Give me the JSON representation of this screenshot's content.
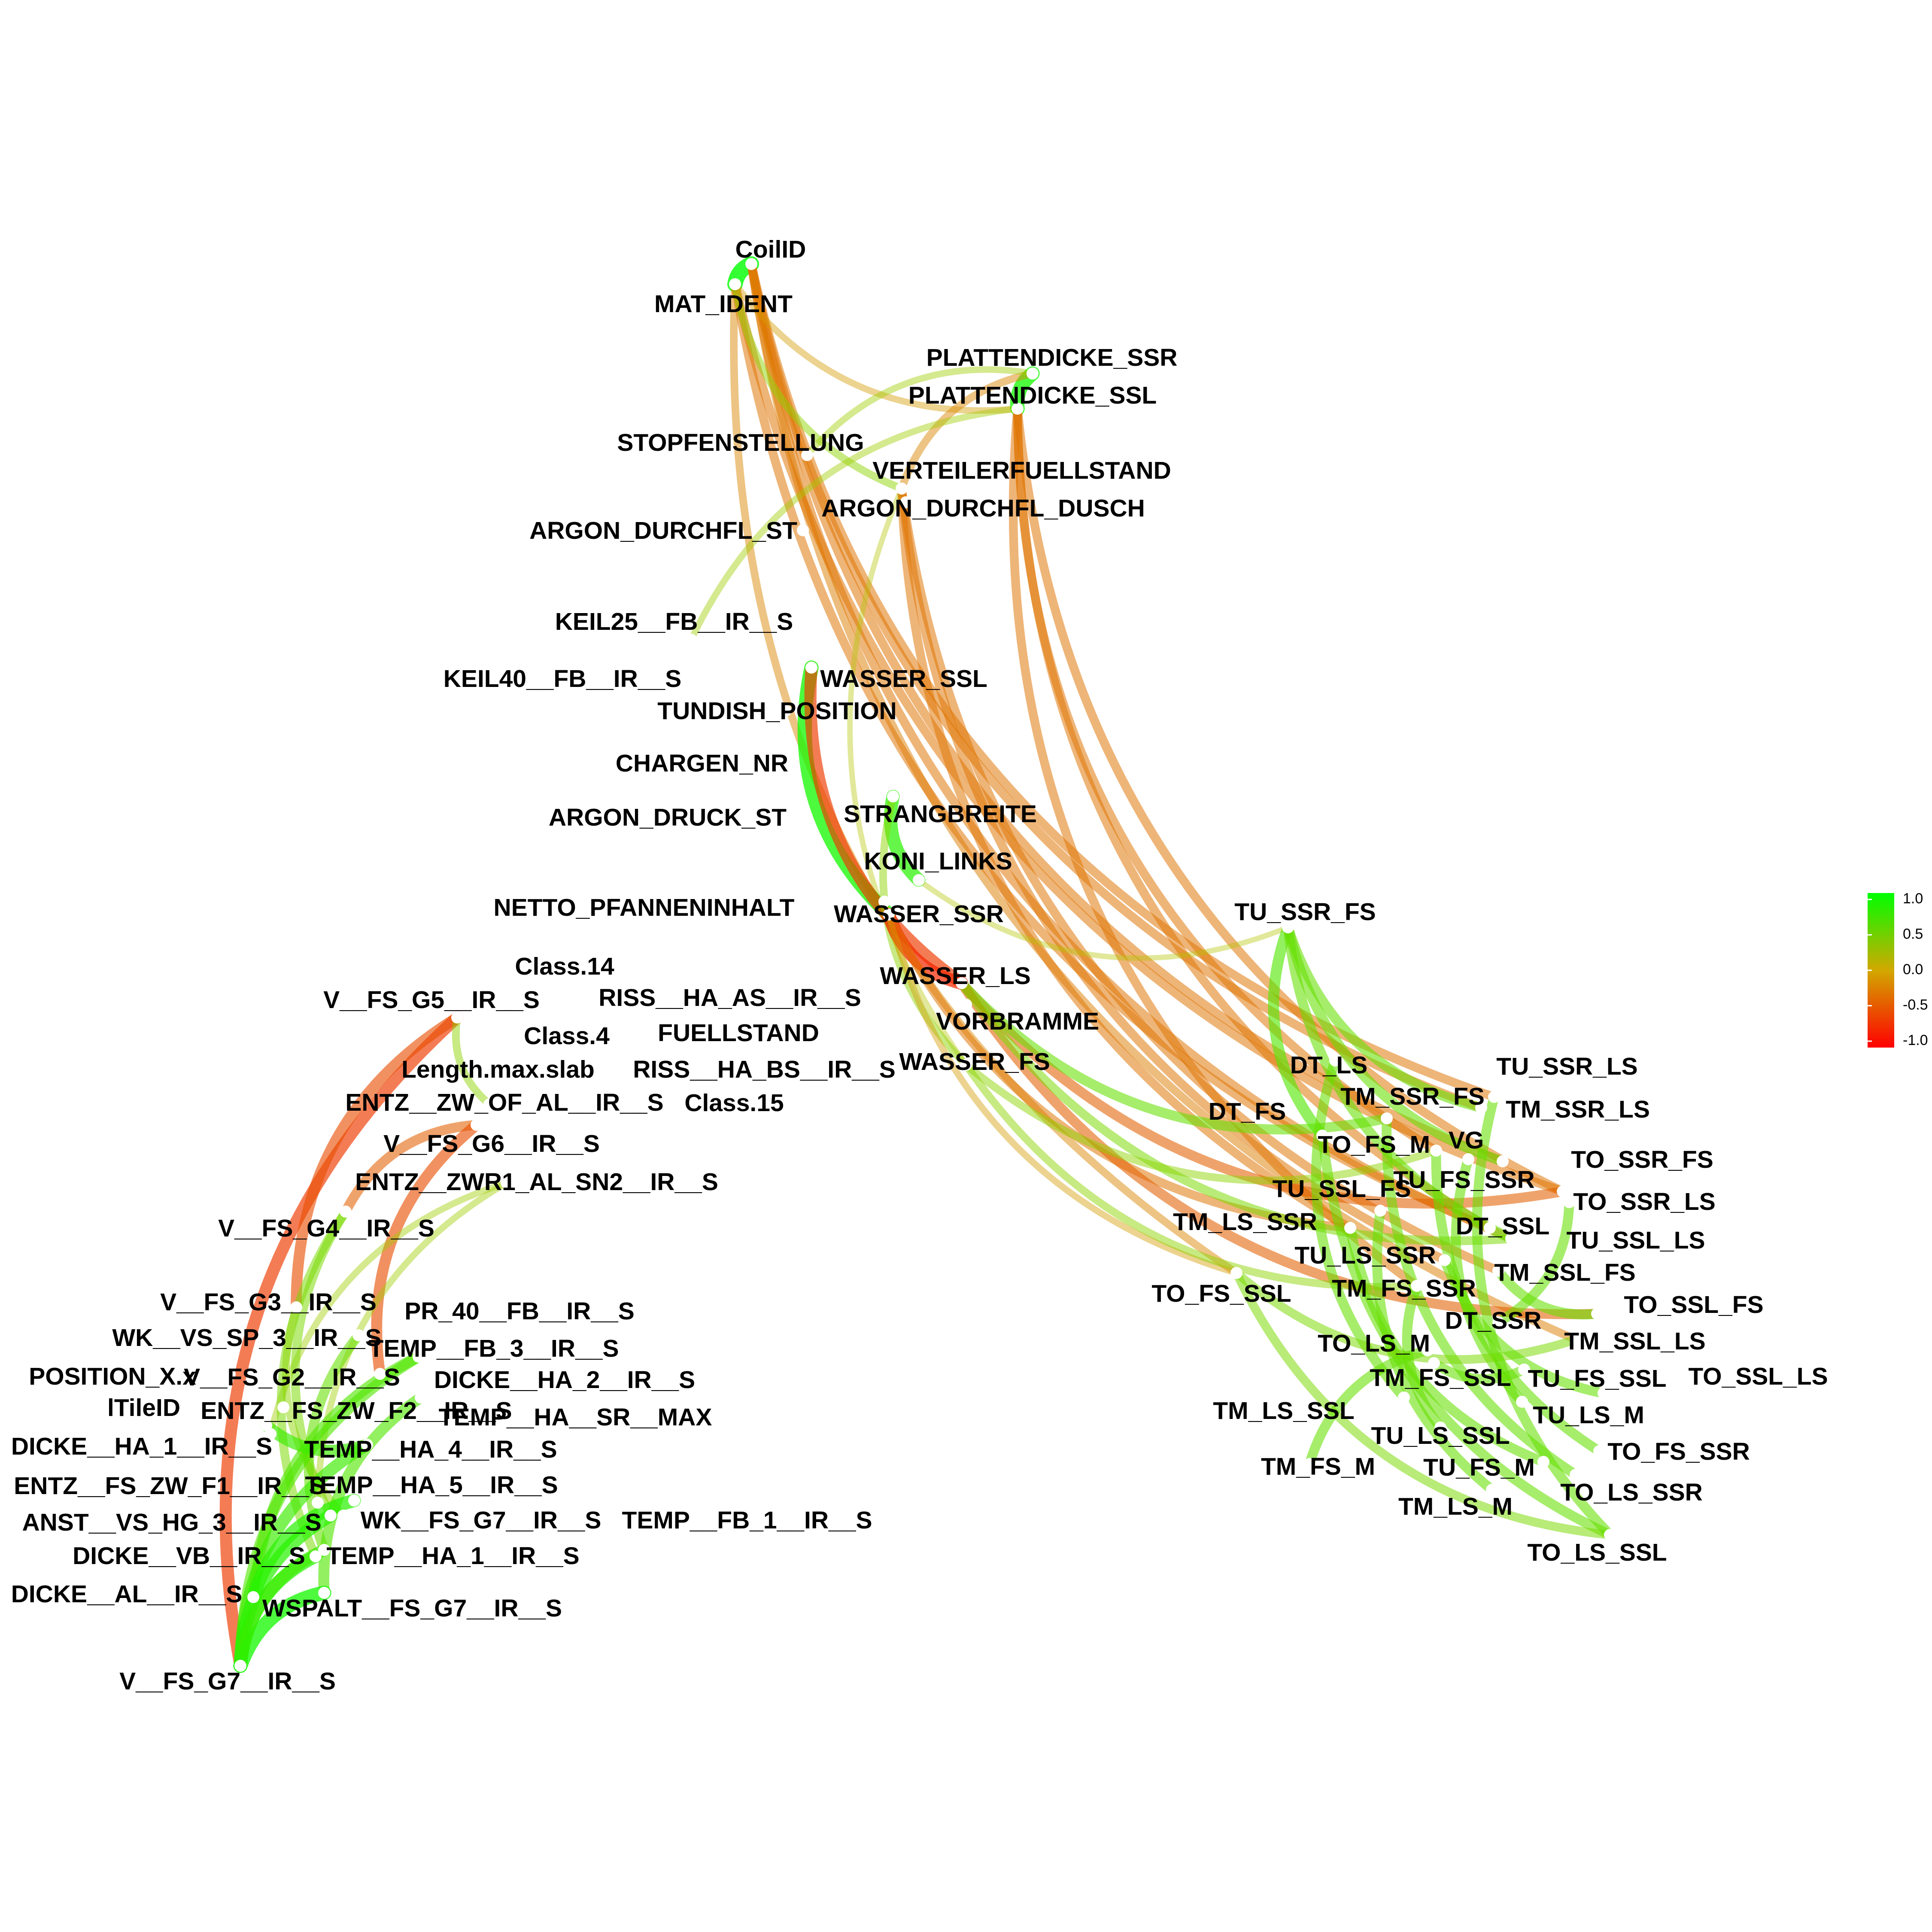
{
  "nodes": [
    {
      "id": "CoilID",
      "label": "CoilID"
    },
    {
      "id": "MAT_IDENT",
      "label": "MAT_IDENT"
    },
    {
      "id": "PLATTENDICKE_SSR",
      "label": "PLATTENDICKE_SSR"
    },
    {
      "id": "PLATTENDICKE_SSL",
      "label": "PLATTENDICKE_SSL"
    },
    {
      "id": "STOPFENSTELLUNG",
      "label": "STOPFENSTELLUNG"
    },
    {
      "id": "VERTEILERFUELLSTAND",
      "label": "VERTEILERFUELLSTAND"
    },
    {
      "id": "ARGON_DURCHFL_DUSCH",
      "label": "ARGON_DURCHFL_DUSCH"
    },
    {
      "id": "ARGON_DURCHFL_ST",
      "label": "ARGON_DURCHFL_ST"
    },
    {
      "id": "KEIL25",
      "label": "KEIL25__FB__IR__S"
    },
    {
      "id": "KEIL40",
      "label": "KEIL40__FB__IR__S"
    },
    {
      "id": "WASSER_SSL",
      "label": "WASSER_SSL"
    },
    {
      "id": "TUNDISH_POSITION",
      "label": "TUNDISH_POSITION"
    },
    {
      "id": "CHARGEN_NR",
      "label": "CHARGEN_NR"
    },
    {
      "id": "ARGON_DRUCK_ST",
      "label": "ARGON_DRUCK_ST"
    },
    {
      "id": "STRANGBREITE",
      "label": "STRANGBREITE"
    },
    {
      "id": "KONI_LINKS",
      "label": "KONI_LINKS"
    },
    {
      "id": "NETTO_PFANNENINHALT",
      "label": "NETTO_PFANNENINHALT"
    },
    {
      "id": "WASSER_SSR",
      "label": "WASSER_SSR"
    },
    {
      "id": "Class.14",
      "label": "Class.14"
    },
    {
      "id": "V_FS_G5",
      "label": "V__FS_G5__IR__S"
    },
    {
      "id": "RISS_HA_AS",
      "label": "RISS__HA_AS__IR__S"
    },
    {
      "id": "WASSER_LS",
      "label": "WASSER_LS"
    },
    {
      "id": "Class.4",
      "label": "Class.4"
    },
    {
      "id": "FUELLSTAND",
      "label": "FUELLSTAND"
    },
    {
      "id": "VORBRAMME",
      "label": "VORBRAMME"
    },
    {
      "id": "Length.max.slab",
      "label": "Length.max.slab"
    },
    {
      "id": "RISS_HA_BS",
      "label": "RISS__HA_BS__IR__S"
    },
    {
      "id": "WASSER_FS",
      "label": "WASSER_FS"
    },
    {
      "id": "ENTZ_ZW_OF_AL",
      "label": "ENTZ__ZW_OF_AL__IR__S"
    },
    {
      "id": "Class.15",
      "label": "Class.15"
    },
    {
      "id": "V_FS_G6",
      "label": "V__FS_G6__IR__S"
    },
    {
      "id": "ENTZ_ZWR1",
      "label": "ENTZ__ZWR1_AL_SN2__IR__S"
    },
    {
      "id": "V_FS_G4",
      "label": "V__FS_G4__IR__S"
    },
    {
      "id": "V_FS_G3",
      "label": "V__FS_G3__IR__S"
    },
    {
      "id": "PR_40",
      "label": "PR_40__FB__IR__S"
    },
    {
      "id": "WK_VS_SP_3",
      "label": "WK__VS_SP_3__IR__S"
    },
    {
      "id": "TEMP_FB_3",
      "label": "TEMP__FB_3__IR__S"
    },
    {
      "id": "POSITION_X.x",
      "label": "POSITION_X.x"
    },
    {
      "id": "V_FS_G2",
      "label": "V__FS_G2__IR__S"
    },
    {
      "id": "DICKE_HA_2",
      "label": "DICKE__HA_2__IR__S"
    },
    {
      "id": "lTileID",
      "label": "lTileID"
    },
    {
      "id": "ENTZ_FS_ZW_F2",
      "label": "ENTZ__FS_ZW_F2__IR__S"
    },
    {
      "id": "TEMP_HA_SR_MAX",
      "label": "TEMP__HA__SR__MAX"
    },
    {
      "id": "DICKE_HA_1",
      "label": "DICKE__HA_1__IR__S"
    },
    {
      "id": "TEMP_HA_4",
      "label": "TEMP__HA_4__IR__S"
    },
    {
      "id": "ENTZ_FS_ZW_F1",
      "label": "ENTZ__FS_ZW_F1__IR__S"
    },
    {
      "id": "TEMP_HA_5",
      "label": "TEMP__HA_5__IR__S"
    },
    {
      "id": "ANST_VS_HG_3",
      "label": "ANST__VS_HG_3__IR__S"
    },
    {
      "id": "WK_FS_G7",
      "label": "WK__FS_G7__IR__S"
    },
    {
      "id": "TEMP_FB_1",
      "label": "TEMP__FB_1__IR__S"
    },
    {
      "id": "DICKE_VB",
      "label": "DICKE__VB__IR__S"
    },
    {
      "id": "TEMP_HA_1",
      "label": "TEMP__HA_1__IR__S"
    },
    {
      "id": "DICKE_AL",
      "label": "DICKE__AL__IR__S"
    },
    {
      "id": "WSPALT_FS_G7",
      "label": "WSPALT__FS_G7__IR__S"
    },
    {
      "id": "V_FS_G7",
      "label": "V__FS_G7__IR__S"
    },
    {
      "id": "TU_SSR_FS",
      "label": "TU_SSR_FS"
    },
    {
      "id": "DT_LS",
      "label": "DT_LS"
    },
    {
      "id": "TU_SSR_LS",
      "label": "TU_SSR_LS"
    },
    {
      "id": "TM_SSR_FS",
      "label": "TM_SSR_FS"
    },
    {
      "id": "DT_FS",
      "label": "DT_FS"
    },
    {
      "id": "TM_SSR_LS",
      "label": "TM_SSR_LS"
    },
    {
      "id": "TO_FS_M",
      "label": "TO_FS_M"
    },
    {
      "id": "VG",
      "label": "VG"
    },
    {
      "id": "TO_SSR_FS",
      "label": "TO_SSR_FS"
    },
    {
      "id": "TU_SSL_FS",
      "label": "TU_SSL_FS"
    },
    {
      "id": "TU_FS_SSR",
      "label": "TU_FS_SSR"
    },
    {
      "id": "TO_SSR_LS",
      "label": "TO_SSR_LS"
    },
    {
      "id": "TM_LS_SSR",
      "label": "TM_LS_SSR"
    },
    {
      "id": "DT_SSL",
      "label": "DT_SSL"
    },
    {
      "id": "TU_SSL_LS",
      "label": "TU_SSL_LS"
    },
    {
      "id": "TU_LS_SSR",
      "label": "TU_LS_SSR"
    },
    {
      "id": "TM_SSL_FS",
      "label": "TM_SSL_FS"
    },
    {
      "id": "TO_FS_SSL",
      "label": "TO_FS_SSL"
    },
    {
      "id": "TM_FS_SSR",
      "label": "TM_FS_SSR"
    },
    {
      "id": "TO_SSL_FS",
      "label": "TO_SSL_FS"
    },
    {
      "id": "DT_SSR",
      "label": "DT_SSR"
    },
    {
      "id": "TM_SSL_LS",
      "label": "TM_SSL_LS"
    },
    {
      "id": "TO_LS_M",
      "label": "TO_LS_M"
    },
    {
      "id": "TM_FS_SSL",
      "label": "TM_FS_SSL"
    },
    {
      "id": "TU_FS_SSL",
      "label": "TU_FS_SSL"
    },
    {
      "id": "TO_SSL_LS",
      "label": "TO_SSL_LS"
    },
    {
      "id": "TM_LS_SSL",
      "label": "TM_LS_SSL"
    },
    {
      "id": "TU_LS_M",
      "label": "TU_LS_M"
    },
    {
      "id": "TU_LS_SSL",
      "label": "TU_LS_SSL"
    },
    {
      "id": "TO_FS_SSR",
      "label": "TO_FS_SSR"
    },
    {
      "id": "TM_FS_M",
      "label": "TM_FS_M"
    },
    {
      "id": "TU_FS_M",
      "label": "TU_FS_M"
    },
    {
      "id": "TO_LS_SSR",
      "label": "TO_LS_SSR"
    },
    {
      "id": "TM_LS_M",
      "label": "TM_LS_M"
    },
    {
      "id": "TO_LS_SSL",
      "label": "TO_LS_SSL"
    }
  ],
  "edges": [
    {
      "from": "CoilID",
      "to": "MAT_IDENT",
      "weight": 1.0
    },
    {
      "from": "CoilID",
      "to": "TU_SSR_LS",
      "weight": -0.4
    },
    {
      "from": "CoilID",
      "to": "TM_SSR_LS",
      "weight": -0.4
    },
    {
      "from": "CoilID",
      "to": "TO_SSR_FS",
      "weight": -0.4
    },
    {
      "from": "CoilID",
      "to": "TU_SSL_LS",
      "weight": -0.4
    },
    {
      "from": "CoilID",
      "to": "TM_SSL_LS",
      "weight": -0.35
    },
    {
      "from": "MAT_IDENT",
      "to": "TU_FS_SSR",
      "weight": -0.4
    },
    {
      "from": "MAT_IDENT",
      "to": "DT_SSL",
      "weight": -0.4
    },
    {
      "from": "MAT_IDENT",
      "to": "TO_FS_SSL",
      "weight": -0.3
    },
    {
      "from": "MAT_IDENT",
      "to": "VERTEILERFUELLSTAND",
      "weight": 0.3
    },
    {
      "from": "MAT_IDENT",
      "to": "PLATTENDICKE_SSL",
      "weight": -0.2
    },
    {
      "from": "PLATTENDICKE_SSR",
      "to": "PLATTENDICKE_SSL",
      "weight": 0.9
    },
    {
      "from": "PLATTENDICKE_SSR",
      "to": "VERTEILERFUELLSTAND",
      "weight": -0.3
    },
    {
      "from": "PLATTENDICKE_SSR",
      "to": "STOPFENSTELLUNG",
      "weight": 0.2
    },
    {
      "from": "PLATTENDICKE_SSL",
      "to": "TU_FS_SSR",
      "weight": -0.4
    },
    {
      "from": "PLATTENDICKE_SSL",
      "to": "DT_SSL",
      "weight": -0.4
    },
    {
      "from": "PLATTENDICKE_SSL",
      "to": "TM_FS_SSR",
      "weight": -0.4
    },
    {
      "from": "PLATTENDICKE_SSL",
      "to": "TO_FS_M",
      "weight": -0.4
    },
    {
      "from": "PLATTENDICKE_SSL",
      "to": "KEIL25",
      "weight": 0.2
    },
    {
      "from": "VERTEILERFUELLSTAND",
      "to": "TM_LS_SSR",
      "weight": -0.4
    },
    {
      "from": "VERTEILERFUELLSTAND",
      "to": "TU_LS_SSR",
      "weight": -0.4
    },
    {
      "from": "VERTEILERFUELLSTAND",
      "to": "WASSER_FS",
      "weight": 0.1
    },
    {
      "from": "VERTEILERFUELLSTAND",
      "to": "TM_SSL_FS",
      "weight": -0.4
    },
    {
      "from": "WASSER_SSL",
      "to": "WASSER_SSR",
      "weight": 0.9
    },
    {
      "from": "WASSER_SSL",
      "to": "WASSER_LS",
      "weight": -0.7
    },
    {
      "from": "STRANGBREITE",
      "to": "KONI_LINKS",
      "weight": 0.8
    },
    {
      "from": "STRANGBREITE",
      "to": "WASSER_FS",
      "weight": 0.3
    },
    {
      "from": "KONI_LINKS",
      "to": "TU_SSR_FS",
      "weight": 0.1
    },
    {
      "from": "WASSER_SSR",
      "to": "WASSER_LS",
      "weight": -0.8
    },
    {
      "from": "WASSER_SSR",
      "to": "TM_LS_SSR",
      "weight": -0.4
    },
    {
      "from": "WASSER_SSR",
      "to": "TO_FS_SSL",
      "weight": -0.2
    },
    {
      "from": "WASSER_LS",
      "to": "TU_FS_SSR",
      "weight": -0.5
    },
    {
      "from": "WASSER_LS",
      "to": "TM_SSR_FS",
      "weight": 0.5
    },
    {
      "from": "WASSER_LS",
      "to": "TO_SSL_FS",
      "weight": -0.5
    },
    {
      "from": "WASSER_LS",
      "to": "TU_SSL_LS",
      "weight": 0.4
    },
    {
      "from": "WASSER_FS",
      "to": "TM_FS_SSR",
      "weight": 0.3
    },
    {
      "from": "WASSER_FS",
      "to": "TO_FS_M",
      "weight": 0.3
    },
    {
      "from": "TU_SSR_FS",
      "to": "DT_FS",
      "weight": 0.6
    },
    {
      "from": "TU_SSR_FS",
      "to": "TO_SSR_FS",
      "weight": 0.5
    },
    {
      "from": "TU_SSR_FS",
      "to": "TU_SSL_LS",
      "weight": 0.5
    },
    {
      "from": "TU_SSR_FS",
      "to": "TM_SSR_LS",
      "weight": 0.5
    },
    {
      "from": "DT_LS",
      "to": "TM_LS_SSL",
      "weight": 0.5
    },
    {
      "from": "DT_FS",
      "to": "TO_LS_SSL",
      "weight": 0.5
    },
    {
      "from": "TM_SSR_FS",
      "to": "TO_LS_SSR",
      "weight": 0.5
    },
    {
      "from": "TO_FS_M",
      "to": "TO_FS_SSR",
      "weight": 0.5
    },
    {
      "from": "VG",
      "to": "TU_LS_M",
      "weight": 0.5
    },
    {
      "from": "TU_SSL_FS",
      "to": "TM_LS_M",
      "weight": 0.5
    },
    {
      "from": "TM_LS_SSR",
      "to": "TU_FS_M",
      "weight": 0.5
    },
    {
      "from": "TO_FS_SSL",
      "to": "TO_LS_SSL",
      "weight": 0.4
    },
    {
      "from": "TO_FS_SSL",
      "to": "TM_SSL_LS",
      "weight": 0.4
    },
    {
      "from": "TU_LS_SSR",
      "to": "TO_SSL_LS",
      "weight": 0.5
    },
    {
      "from": "TM_FS_SSR",
      "to": "TU_LS_SSL",
      "weight": 0.5
    },
    {
      "from": "DT_SSR",
      "to": "TO_SSR_LS",
      "weight": 0.5
    },
    {
      "from": "TO_LS_M",
      "to": "TM_FS_M",
      "weight": 0.5
    },
    {
      "from": "TM_FS_SSL",
      "to": "TU_FS_SSL",
      "weight": 0.5
    },
    {
      "from": "TM_SSL_FS",
      "to": "TO_SSL_FS",
      "weight": 0.5
    },
    {
      "from": "TU_SSR_LS",
      "to": "TO_LS_SSL",
      "weight": 0.5
    },
    {
      "from": "V_FS_G5",
      "to": "V_FS_G7",
      "weight": -0.7
    },
    {
      "from": "V_FS_G5",
      "to": "V_FS_G3",
      "weight": -0.6
    },
    {
      "from": "V_FS_G5",
      "to": "ENTZ_ZW_OF_AL",
      "weight": 0.3
    },
    {
      "from": "V_FS_G6",
      "to": "V_FS_G4",
      "weight": -0.5
    },
    {
      "from": "V_FS_G6",
      "to": "V_FS_G2",
      "weight": -0.6
    },
    {
      "from": "ENTZ_ZWR1",
      "to": "DICKE_HA_1",
      "weight": 0.2
    },
    {
      "from": "ENTZ_ZWR1",
      "to": "ENTZ_FS_ZW_F1",
      "weight": 0.2
    },
    {
      "from": "V_FS_G4",
      "to": "ANST_VS_HG_3",
      "weight": 0.4
    },
    {
      "from": "V_FS_G4",
      "to": "DICKE_VB",
      "weight": 0.4
    },
    {
      "from": "V_FS_G3",
      "to": "WK_FS_G7",
      "weight": 0.3
    },
    {
      "from": "WK_VS_SP_3",
      "to": "TEMP_HA_1",
      "weight": 0.5
    },
    {
      "from": "TEMP_FB_3",
      "to": "V_FS_G7",
      "weight": 0.6
    },
    {
      "from": "TEMP_FB_3",
      "to": "DICKE_AL",
      "weight": 0.6
    },
    {
      "from": "DICKE_HA_2",
      "to": "WSPALT_FS_G7",
      "weight": 0.6
    },
    {
      "from": "ENTZ_FS_ZW_F2",
      "to": "TEMP_HA_4",
      "weight": 0.7
    },
    {
      "from": "TEMP_HA_4",
      "to": "V_FS_G7",
      "weight": 0.7
    },
    {
      "from": "TEMP_HA_5",
      "to": "DICKE_AL",
      "weight": 0.8
    },
    {
      "from": "ANST_VS_HG_3",
      "to": "V_FS_G7",
      "weight": 0.8
    },
    {
      "from": "DICKE_VB",
      "to": "V_FS_G7",
      "weight": 0.8
    },
    {
      "from": "WSPALT_FS_G7",
      "to": "V_FS_G7",
      "weight": 0.9
    },
    {
      "from": "TEMP_HA_1",
      "to": "V_FS_G7",
      "weight": 0.7
    }
  ],
  "legend": {
    "ticks": [
      "1.0",
      "0.5",
      "0.0",
      "-0.5",
      "-1.0"
    ],
    "colors": {
      "high": "#00ff00",
      "mid": "#c8c000",
      "low": "#ff0000"
    }
  }
}
